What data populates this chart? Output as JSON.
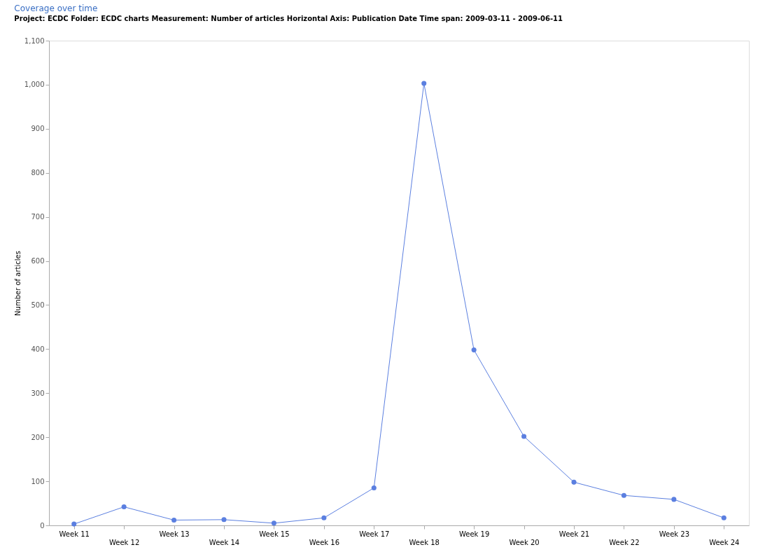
{
  "chart_data": {
    "type": "line",
    "title": "Coverage over time",
    "subtitle": "Project: ECDC Folder: ECDC charts Measurement: Number of articles Horizontal Axis: Publication Date Time span: 2009-03-11 - 2009-06-11",
    "ylabel": "Number of articles",
    "categories": [
      "Week 11",
      "Week 12",
      "Week 13",
      "Week 14",
      "Week 15",
      "Week 16",
      "Week 17",
      "Week 18",
      "Week 19",
      "Week 20",
      "Week 21",
      "Week 22",
      "Week 23",
      "Week 24"
    ],
    "series": [
      {
        "color": "#5b7fe0",
        "values": [
          3,
          42,
          12,
          13,
          5,
          17,
          85,
          1003,
          398,
          202,
          98,
          68,
          59,
          17
        ]
      }
    ],
    "ylim": [
      0,
      1100
    ],
    "yticks": [
      0,
      100,
      200,
      300,
      400,
      500,
      600,
      700,
      800,
      900,
      {
        "value": 1000,
        "label": "1,000"
      },
      {
        "value": 1100,
        "label": "1,100"
      }
    ],
    "grid": false,
    "marker": "circle",
    "line_style": "solid"
  }
}
